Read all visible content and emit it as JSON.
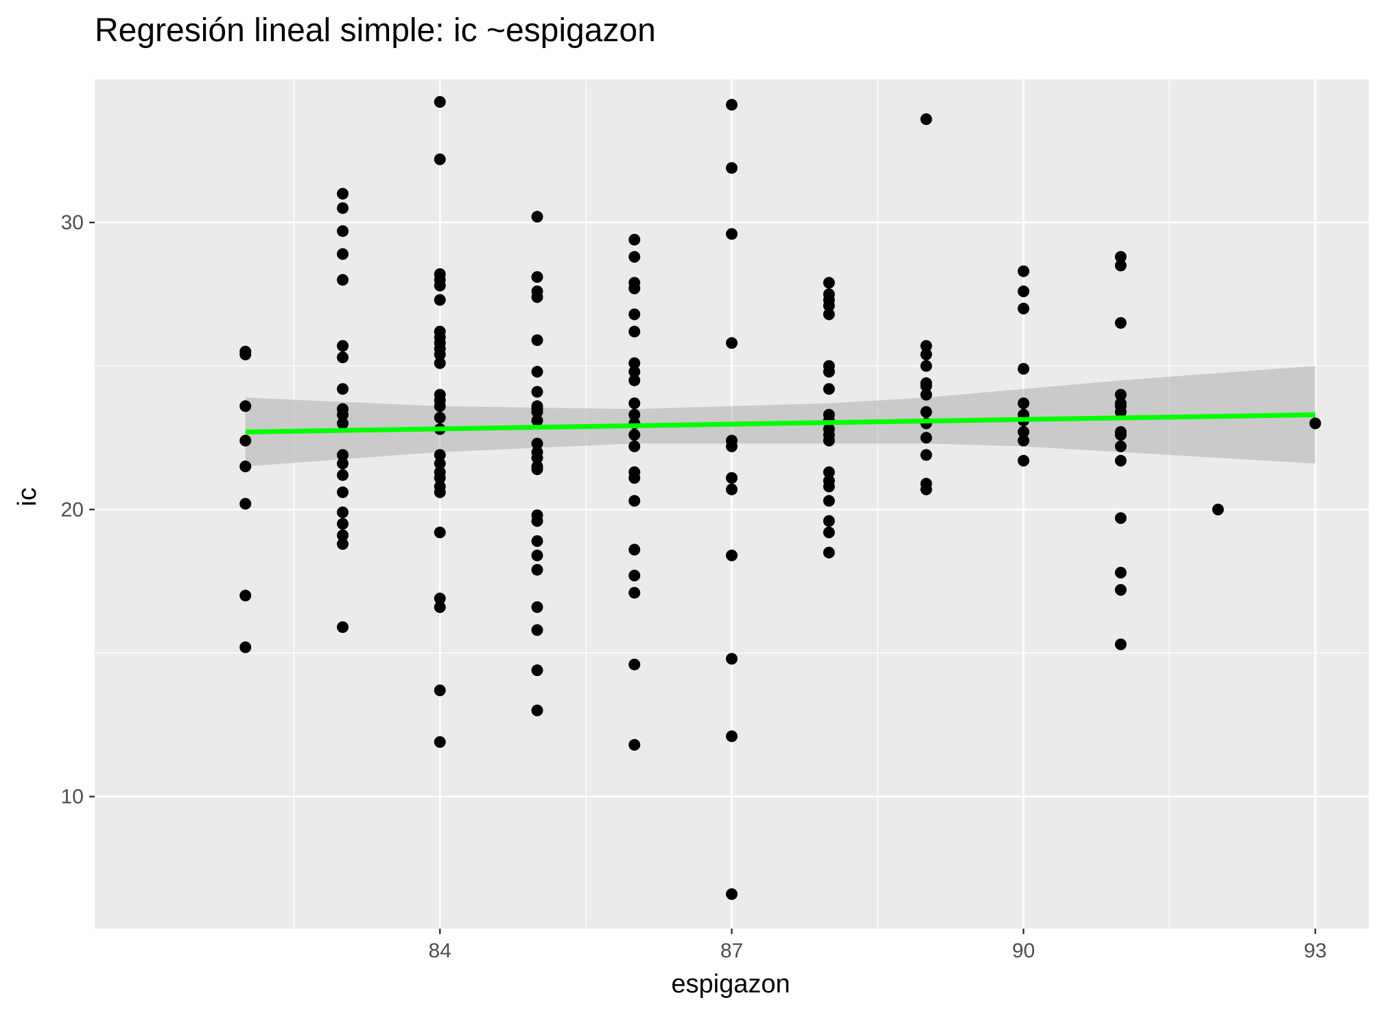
{
  "chart_data": {
    "type": "scatter",
    "title": "Regresión lineal simple:  ic ~espigazon",
    "xlabel": "espigazon",
    "ylabel": "ic",
    "xlim": [
      80.45,
      93.55
    ],
    "ylim": [
      5.4,
      35.0
    ],
    "x_ticks": [
      84,
      87,
      90,
      93
    ],
    "x_tick_labels": [
      "84",
      "87",
      "90",
      "93"
    ],
    "y_ticks": [
      10,
      20,
      30
    ],
    "y_tick_labels": [
      "10",
      "20",
      "30"
    ],
    "grid": true,
    "legend": "none",
    "colors": {
      "panel": "#ebebeb",
      "grid": "#ffffff",
      "points": "#000000",
      "fit_line": "#00ff00",
      "confidence_band": "#999999"
    },
    "points": [
      [
        82,
        25.5
      ],
      [
        82,
        25.4
      ],
      [
        82,
        23.6
      ],
      [
        82,
        22.4
      ],
      [
        82,
        21.5
      ],
      [
        82,
        20.2
      ],
      [
        82,
        17.0
      ],
      [
        82,
        15.2
      ],
      [
        83,
        31.0
      ],
      [
        83,
        30.5
      ],
      [
        83,
        29.7
      ],
      [
        83,
        28.9
      ],
      [
        83,
        28.0
      ],
      [
        83,
        25.7
      ],
      [
        83,
        25.3
      ],
      [
        83,
        24.2
      ],
      [
        83,
        23.5
      ],
      [
        83,
        23.3
      ],
      [
        83,
        23.0
      ],
      [
        83,
        21.9
      ],
      [
        83,
        21.6
      ],
      [
        83,
        21.2
      ],
      [
        83,
        20.6
      ],
      [
        83,
        19.9
      ],
      [
        83,
        19.5
      ],
      [
        83,
        19.1
      ],
      [
        83,
        18.8
      ],
      [
        83,
        15.9
      ],
      [
        84,
        34.2
      ],
      [
        84,
        32.2
      ],
      [
        84,
        28.2
      ],
      [
        84,
        28.0
      ],
      [
        84,
        27.8
      ],
      [
        84,
        27.3
      ],
      [
        84,
        26.2
      ],
      [
        84,
        26.0
      ],
      [
        84,
        25.8
      ],
      [
        84,
        25.6
      ],
      [
        84,
        25.4
      ],
      [
        84,
        25.1
      ],
      [
        84,
        24.0
      ],
      [
        84,
        23.8
      ],
      [
        84,
        23.6
      ],
      [
        84,
        23.2
      ],
      [
        84,
        22.8
      ],
      [
        84,
        21.9
      ],
      [
        84,
        21.6
      ],
      [
        84,
        21.3
      ],
      [
        84,
        21.1
      ],
      [
        84,
        20.8
      ],
      [
        84,
        20.6
      ],
      [
        84,
        19.2
      ],
      [
        84,
        16.9
      ],
      [
        84,
        16.6
      ],
      [
        84,
        13.7
      ],
      [
        84,
        11.9
      ],
      [
        85,
        30.2
      ],
      [
        85,
        28.1
      ],
      [
        85,
        27.6
      ],
      [
        85,
        27.4
      ],
      [
        85,
        25.9
      ],
      [
        85,
        24.8
      ],
      [
        85,
        24.1
      ],
      [
        85,
        23.6
      ],
      [
        85,
        23.5
      ],
      [
        85,
        23.4
      ],
      [
        85,
        23.1
      ],
      [
        85,
        22.3
      ],
      [
        85,
        22.0
      ],
      [
        85,
        21.8
      ],
      [
        85,
        21.5
      ],
      [
        85,
        21.4
      ],
      [
        85,
        19.8
      ],
      [
        85,
        19.6
      ],
      [
        85,
        18.9
      ],
      [
        85,
        18.4
      ],
      [
        85,
        17.9
      ],
      [
        85,
        16.6
      ],
      [
        85,
        15.8
      ],
      [
        85,
        14.4
      ],
      [
        85,
        13.0
      ],
      [
        86,
        29.4
      ],
      [
        86,
        28.8
      ],
      [
        86,
        27.9
      ],
      [
        86,
        27.7
      ],
      [
        86,
        26.8
      ],
      [
        86,
        26.2
      ],
      [
        86,
        25.1
      ],
      [
        86,
        24.8
      ],
      [
        86,
        24.5
      ],
      [
        86,
        23.7
      ],
      [
        86,
        23.3
      ],
      [
        86,
        23.0
      ],
      [
        86,
        22.6
      ],
      [
        86,
        22.2
      ],
      [
        86,
        21.3
      ],
      [
        86,
        21.1
      ],
      [
        86,
        20.3
      ],
      [
        86,
        18.6
      ],
      [
        86,
        17.7
      ],
      [
        86,
        17.1
      ],
      [
        86,
        14.6
      ],
      [
        86,
        11.8
      ],
      [
        87,
        34.1
      ],
      [
        87,
        31.9
      ],
      [
        87,
        29.6
      ],
      [
        87,
        25.8
      ],
      [
        87,
        22.4
      ],
      [
        87,
        22.2
      ],
      [
        87,
        21.1
      ],
      [
        87,
        20.7
      ],
      [
        87,
        18.4
      ],
      [
        87,
        14.8
      ],
      [
        87,
        12.1
      ],
      [
        87,
        6.6
      ],
      [
        88,
        27.9
      ],
      [
        88,
        27.5
      ],
      [
        88,
        27.3
      ],
      [
        88,
        27.1
      ],
      [
        88,
        26.8
      ],
      [
        88,
        25.0
      ],
      [
        88,
        24.8
      ],
      [
        88,
        24.2
      ],
      [
        88,
        23.3
      ],
      [
        88,
        23.1
      ],
      [
        88,
        22.8
      ],
      [
        88,
        22.6
      ],
      [
        88,
        22.4
      ],
      [
        88,
        21.3
      ],
      [
        88,
        21.0
      ],
      [
        88,
        20.8
      ],
      [
        88,
        20.3
      ],
      [
        88,
        19.6
      ],
      [
        88,
        19.2
      ],
      [
        88,
        18.5
      ],
      [
        89,
        33.6
      ],
      [
        89,
        25.7
      ],
      [
        89,
        25.4
      ],
      [
        89,
        25.0
      ],
      [
        89,
        24.4
      ],
      [
        89,
        24.3
      ],
      [
        89,
        24.0
      ],
      [
        89,
        23.4
      ],
      [
        89,
        23.0
      ],
      [
        89,
        22.5
      ],
      [
        89,
        21.9
      ],
      [
        89,
        20.9
      ],
      [
        89,
        20.7
      ],
      [
        90,
        28.3
      ],
      [
        90,
        27.6
      ],
      [
        90,
        27.0
      ],
      [
        90,
        24.9
      ],
      [
        90,
        23.7
      ],
      [
        90,
        23.3
      ],
      [
        90,
        23.1
      ],
      [
        90,
        22.7
      ],
      [
        90,
        22.4
      ],
      [
        90,
        21.7
      ],
      [
        91,
        28.8
      ],
      [
        91,
        28.5
      ],
      [
        91,
        26.5
      ],
      [
        91,
        24.0
      ],
      [
        91,
        23.7
      ],
      [
        91,
        23.6
      ],
      [
        91,
        23.4
      ],
      [
        91,
        22.7
      ],
      [
        91,
        22.6
      ],
      [
        91,
        22.2
      ],
      [
        91,
        21.7
      ],
      [
        91,
        19.7
      ],
      [
        91,
        17.8
      ],
      [
        91,
        17.2
      ],
      [
        91,
        15.3
      ],
      [
        92,
        20.0
      ],
      [
        93,
        23.0
      ]
    ],
    "fit_line": {
      "x": [
        82,
        93
      ],
      "y": [
        22.7,
        23.3
      ]
    },
    "confidence_band": {
      "x": [
        82,
        84,
        86,
        87,
        88,
        89,
        90,
        91,
        93
      ],
      "upper": [
        23.9,
        23.6,
        23.5,
        23.6,
        23.7,
        23.9,
        24.2,
        24.5,
        25.0
      ],
      "lower": [
        21.5,
        22.0,
        22.3,
        22.3,
        22.3,
        22.3,
        22.2,
        22.0,
        21.6
      ]
    }
  }
}
